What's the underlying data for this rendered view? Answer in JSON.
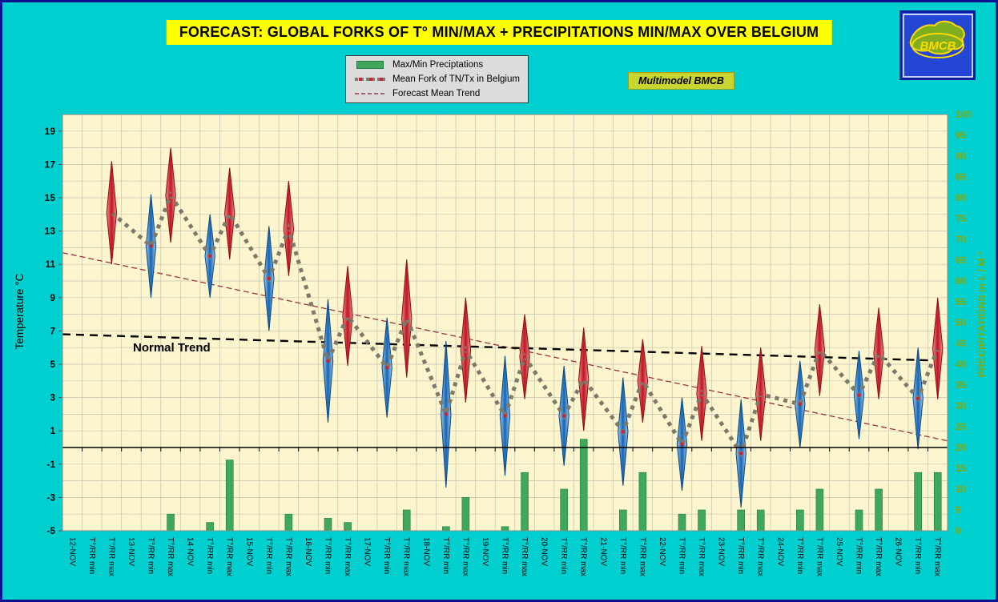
{
  "header": {
    "title": "FORECAST: GLOBAL FORKS OF T° MIN/MAX + PRECIPITATIONS MIN/MAX OVER  BELGIUM",
    "badge": "Multimodel BMCB",
    "logo_text": "BMCB"
  },
  "legend": {
    "items": [
      {
        "label": "Max/Min Preciptations"
      },
      {
        "label": "Mean Fork of TN/Tx in Belgium"
      },
      {
        "label": "Forecast Mean Trend"
      }
    ]
  },
  "chart_data": {
    "type": "combo-fork-bar",
    "temp_axis": {
      "title": "Temperature  °C",
      "min": -5,
      "max": 20,
      "label_step": 2,
      "labels_from": -5,
      "labels_to": 19
    },
    "precip_axis": {
      "title": "PRECIPITATIONS in L / M ²",
      "min": 0,
      "max": 100,
      "label_step": 5
    },
    "x_sub_labels": [
      "T°/RR min",
      "T°/RR max"
    ],
    "days": [
      {
        "date": "12-NOV",
        "tn": null,
        "tx": [
          11.0,
          17.2
        ],
        "rr_min": 0,
        "rr_max": 0
      },
      {
        "date": "13-NOV",
        "tn": [
          9.0,
          15.2
        ],
        "tx": [
          12.3,
          18.0
        ],
        "rr_min": 0,
        "rr_max": 4
      },
      {
        "date": "14-NOV",
        "tn": [
          9.0,
          14.0
        ],
        "tx": [
          11.3,
          16.8
        ],
        "rr_min": 2,
        "rr_max": 17
      },
      {
        "date": "15-NOV",
        "tn": [
          7.0,
          13.3
        ],
        "tx": [
          10.3,
          16.0
        ],
        "rr_min": 0,
        "rr_max": 4
      },
      {
        "date": "16-NOV",
        "tn": [
          1.5,
          8.9
        ],
        "tx": [
          4.9,
          10.9
        ],
        "rr_min": 3,
        "rr_max": 2
      },
      {
        "date": "17-NOV",
        "tn": [
          1.8,
          7.8
        ],
        "tx": [
          4.2,
          11.3
        ],
        "rr_min": 0,
        "rr_max": 5
      },
      {
        "date": "18-NOV",
        "tn": [
          -2.4,
          6.4
        ],
        "tx": [
          2.7,
          9.0
        ],
        "rr_min": 1,
        "rr_max": 8
      },
      {
        "date": "19-NOV",
        "tn": [
          -1.7,
          5.5
        ],
        "tx": [
          2.9,
          8.0
        ],
        "rr_min": 1,
        "rr_max": 14
      },
      {
        "date": "20-NOV",
        "tn": [
          -1.1,
          4.9
        ],
        "tx": [
          1.0,
          7.2
        ],
        "rr_min": 10,
        "rr_max": 22
      },
      {
        "date": "21-NOV",
        "tn": [
          -2.3,
          4.2
        ],
        "tx": [
          1.5,
          6.5
        ],
        "rr_min": 5,
        "rr_max": 14
      },
      {
        "date": "22-NOV",
        "tn": [
          -2.6,
          3.0
        ],
        "tx": [
          0.4,
          6.1
        ],
        "rr_min": 4,
        "rr_max": 5
      },
      {
        "date": "23-NOV",
        "tn": [
          -3.6,
          2.9
        ],
        "tx": [
          0.4,
          6.0
        ],
        "rr_min": 5,
        "rr_max": 5
      },
      {
        "date": "24-NOV",
        "tn": [
          0.0,
          5.2
        ],
        "tx": [
          3.1,
          8.6
        ],
        "rr_min": 5,
        "rr_max": 10
      },
      {
        "date": "25-NOV",
        "tn": [
          0.5,
          5.8
        ],
        "tx": [
          2.9,
          8.4
        ],
        "rr_min": 5,
        "rr_max": 10
      },
      {
        "date": "26-NOV",
        "tn": [
          -0.1,
          6.0
        ],
        "tx": [
          2.9,
          9.0
        ],
        "rr_min": 14,
        "rr_max": 14
      }
    ],
    "normal_trend": {
      "label": "Normal Trend",
      "start_c": 6.8,
      "end_c": 5.2
    },
    "forecast_trend": {
      "start_c": 11.7,
      "end_c": 0.4
    }
  },
  "colors": {
    "background": "#00cfd0",
    "plot_bg": "#fdf5cd",
    "title_bg": "#ffff00",
    "bar_green": "#3fa85c",
    "tmax_red": "#c01420",
    "tmin_blue": "#1565b4",
    "mean_line": "#7d7a6a",
    "mean_point_red": "#cc2233",
    "forecast_trend": "#993344",
    "normal_trend": "#000000",
    "precip_label": "#88a606",
    "badge_bg": "#c8d42f"
  }
}
